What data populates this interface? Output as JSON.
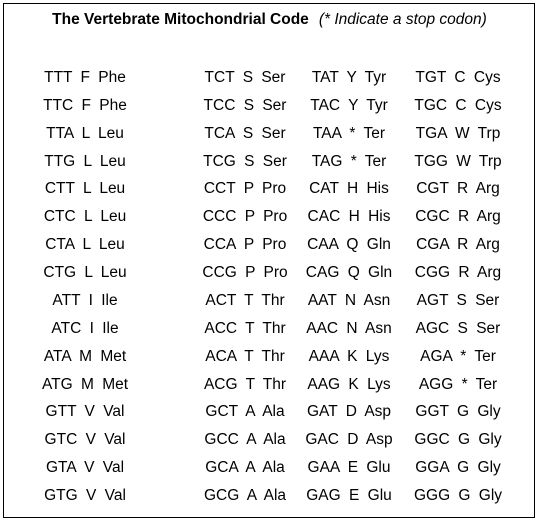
{
  "header": {
    "title": "The Vertebrate Mitochondrial Code",
    "note": "(* Indicate a stop codon)"
  },
  "table": {
    "rows": [
      [
        "TTT F Phe",
        "TCT S Ser",
        "TAT Y Tyr",
        "TGT C Cys"
      ],
      [
        "TTC F Phe",
        "TCC S Ser",
        "TAC Y Tyr",
        "TGC C Cys"
      ],
      [
        "TTA L Leu",
        "TCA S Ser",
        "TAA * Ter",
        "TGA W Trp"
      ],
      [
        "TTG L Leu",
        "TCG S Ser",
        "TAG * Ter",
        "TGG W Trp"
      ],
      [
        "CTT L Leu",
        "CCT P Pro",
        "CAT H His",
        "CGT R Arg"
      ],
      [
        "CTC L Leu",
        "CCC P Pro",
        "CAC H His",
        "CGC R Arg"
      ],
      [
        "CTA L Leu",
        "CCA P Pro",
        "CAA Q Gln",
        "CGA R Arg"
      ],
      [
        "CTG L Leu",
        "CCG P Pro",
        "CAG Q Gln",
        "CGG R Arg"
      ],
      [
        "ATT I Ile",
        "ACT T Thr",
        "AAT N Asn",
        "AGT S Ser"
      ],
      [
        "ATC I Ile",
        "ACC T Thr",
        "AAC N Asn",
        "AGC S Ser"
      ],
      [
        "ATA M Met",
        "ACA T Thr",
        "AAA K Lys",
        "AGA * Ter"
      ],
      [
        "ATG M Met",
        "ACG T Thr",
        "AAG K Lys",
        "AGG * Ter"
      ],
      [
        "GTT V Val",
        "GCT A Ala",
        "GAT D Asp",
        "GGT G Gly"
      ],
      [
        "GTC V Val",
        "GCC A Ala",
        "GAC D Asp",
        "GGC G Gly"
      ],
      [
        "GTA V Val",
        "GCA A Ala",
        "GAA E Glu",
        "GGA G Gly"
      ],
      [
        "GTG V Val",
        "GCG A Ala",
        "GAG E Glu",
        "GGG G Gly"
      ]
    ]
  }
}
